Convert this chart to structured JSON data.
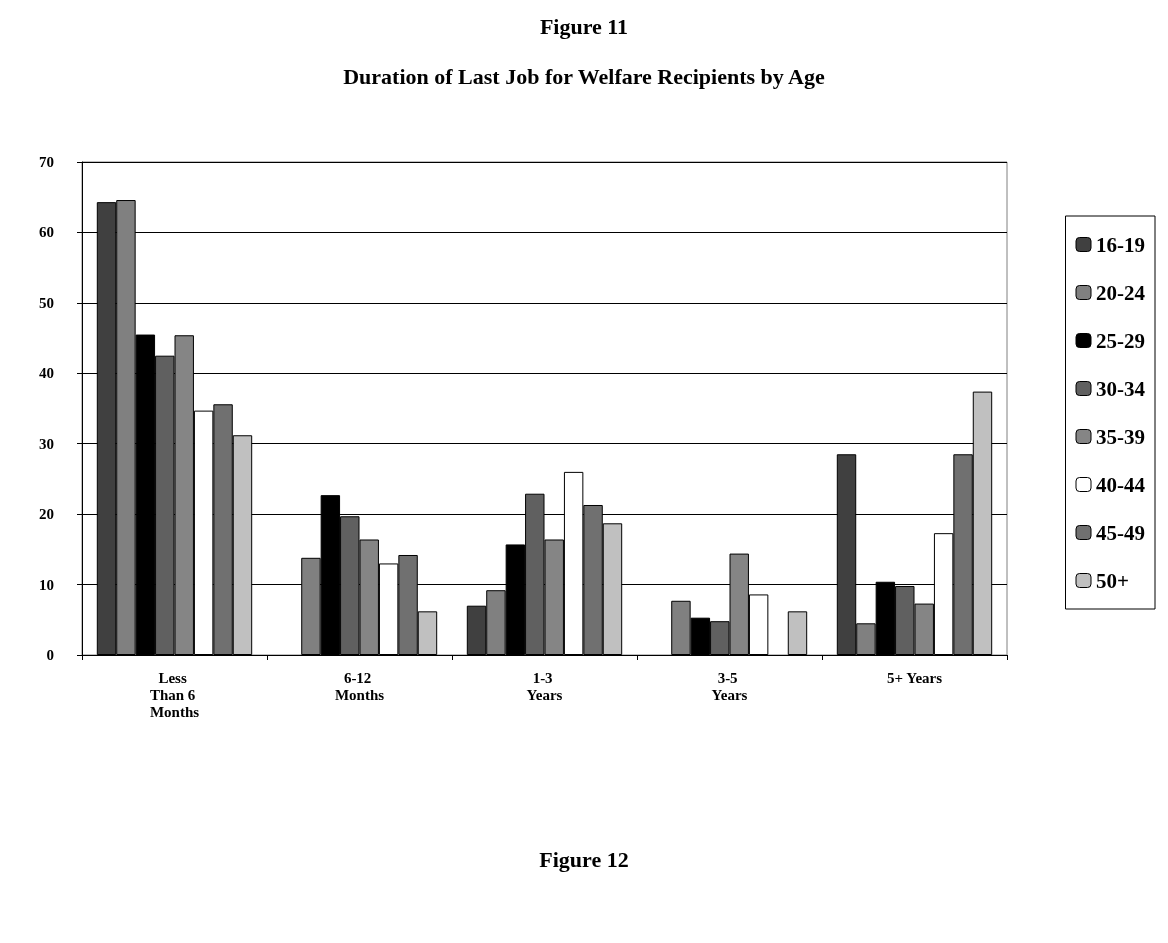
{
  "chart_data": {
    "type": "bar",
    "title": "Figure 11",
    "subtitle": "Duration of Last Job for Welfare Recipients by Age",
    "categories": [
      "Less Than 6 Months",
      "6-12 Months",
      "1-3 Years",
      "3-5 Years",
      "5+ Years"
    ],
    "series": [
      {
        "name": "16-19",
        "color": "#404040",
        "values": [
          64.3,
          null,
          7.0,
          null,
          28.5
        ]
      },
      {
        "name": "20-24",
        "color": "#808080",
        "values": [
          64.6,
          13.8,
          9.2,
          7.7,
          4.5
        ]
      },
      {
        "name": "25-29",
        "color": "#000000",
        "values": [
          45.5,
          22.7,
          15.7,
          5.3,
          10.4
        ]
      },
      {
        "name": "30-34",
        "color": "#606060",
        "values": [
          42.5,
          19.7,
          22.9,
          4.8,
          9.8
        ]
      },
      {
        "name": "35-39",
        "color": "#858585",
        "values": [
          45.4,
          16.4,
          16.4,
          14.4,
          7.3
        ]
      },
      {
        "name": "40-44",
        "color": "#ffffff",
        "values": [
          34.7,
          13.0,
          26.0,
          8.6,
          17.3
        ]
      },
      {
        "name": "45-49",
        "color": "#707070",
        "values": [
          35.6,
          14.2,
          21.3,
          null,
          28.5
        ]
      },
      {
        "name": "50+",
        "color": "#c0c0c0",
        "values": [
          31.2,
          6.2,
          18.7,
          6.2,
          37.4
        ]
      }
    ],
    "ylim": [
      0,
      70
    ],
    "yticks": [
      0,
      10,
      20,
      30,
      40,
      50,
      60,
      70
    ],
    "grid": "y",
    "legend": "right",
    "annotations": [
      "Figure 12"
    ]
  }
}
